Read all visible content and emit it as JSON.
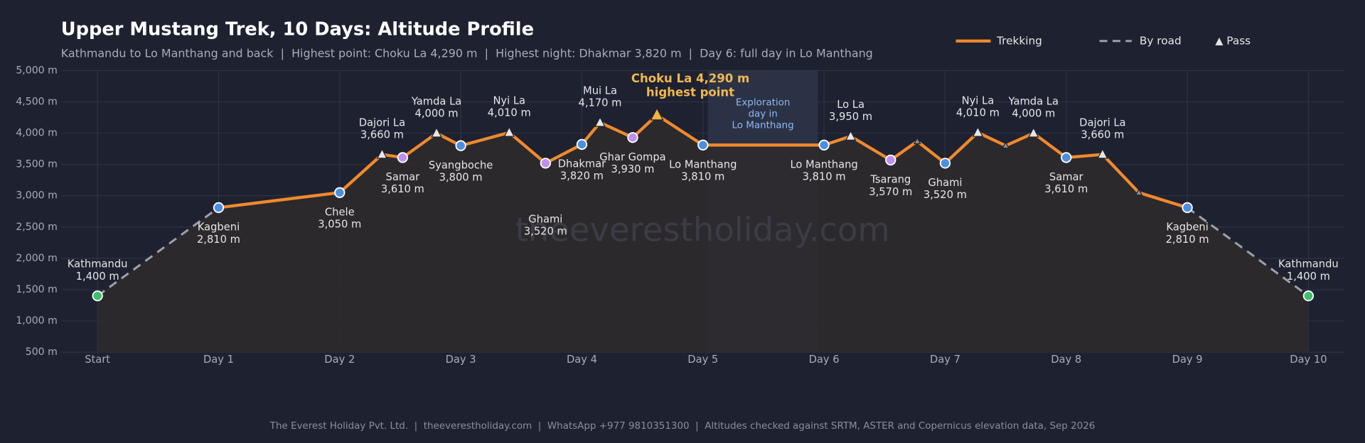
{
  "chart_data": {
    "type": "line",
    "title": "Upper Mustang Trek, 10 Days: Altitude Profile",
    "subtitle": "Kathmandu to Lo Manthang and back  |  Highest point: Choku La 4,290 m  |  Highest night: Dhakmar 3,820 m  |  Day 6: full day in Lo Manthang",
    "x": [
      0,
      1,
      2,
      2.35,
      2.52,
      2.8,
      3,
      3.4,
      3.7,
      4,
      4.15,
      4.42,
      4.62,
      5,
      6,
      6.22,
      6.55,
      6.77,
      7,
      7.27,
      7.5,
      7.73,
      8,
      8.3,
      8.6,
      9,
      10
    ],
    "series": [
      {
        "name": "Trekking",
        "color": "#f08a2c",
        "values": [
          null,
          2810,
          3050,
          3660,
          3610,
          4000,
          3800,
          4010,
          3520,
          3820,
          4170,
          3930,
          4290,
          3810,
          3810,
          3950,
          3570,
          3870,
          3520,
          4010,
          3800,
          4000,
          3610,
          3660,
          3050,
          2810,
          null
        ]
      },
      {
        "name": "By road",
        "color": "#9aa0ab",
        "dashed": true,
        "values": [
          1400,
          2810,
          null,
          null,
          null,
          null,
          null,
          null,
          null,
          null,
          null,
          null,
          null,
          null,
          null,
          null,
          null,
          null,
          null,
          null,
          null,
          null,
          null,
          null,
          null,
          2810,
          1400
        ]
      }
    ],
    "point_names": [
      "Kathmandu",
      "Kagbeni",
      "Chele",
      "Dajori La",
      "Samar",
      "Yamda La",
      "Syangboche",
      "Nyi La",
      "Ghami",
      "Dhakmar",
      "Mui La",
      "Ghar Gompa",
      null,
      "Lo Manthang",
      "Lo Manthang",
      "Lo La",
      "Tsarang",
      null,
      "Ghami",
      "Nyi La",
      null,
      "Yamda La",
      "Samar",
      "Dajori La",
      null,
      "Kagbeni",
      "Kathmandu"
    ],
    "value_labels": [
      "1,400 m",
      "2,810 m",
      "3,050 m",
      "3,660 m",
      "3,610 m",
      "4,000 m",
      "3,800 m",
      "4,010 m",
      "3,520 m",
      "3,820 m",
      "4,170 m",
      "3,930 m",
      null,
      "3,810 m",
      "3,810 m",
      "3,950 m",
      "3,570 m",
      null,
      "3,520 m",
      "4,010 m",
      null,
      "4,000 m",
      "3,610 m",
      "3,660 m",
      null,
      "2,810 m",
      "1,400 m"
    ],
    "markers": [
      "start",
      "stop",
      "stop",
      "pass",
      "rest",
      "pass",
      "stop",
      "pass",
      "rest",
      "stop",
      "pass",
      "rest",
      "summit",
      "stop",
      "stop",
      "pass",
      "rest",
      "minor",
      "stop",
      "pass",
      "minor",
      "pass",
      "stop",
      "pass",
      "minor",
      "stop",
      "start"
    ],
    "marker_colors": {
      "start": "#3fbf6a",
      "stop": "#4a90e2",
      "rest": "#c08ff0",
      "pass": "#e6e6e6",
      "summit": "#f0b440",
      "minor": "#8a8f99"
    },
    "legend_pass": "Pass",
    "xlim": [
      -0.3,
      10.3
    ],
    "xticks": [
      {
        "value": 0,
        "label": "Start"
      },
      {
        "value": 1,
        "label": "Day 1"
      },
      {
        "value": 2,
        "label": "Day 2"
      },
      {
        "value": 3,
        "label": "Day 3"
      },
      {
        "value": 4,
        "label": "Day 4"
      },
      {
        "value": 5,
        "label": "Day 5"
      },
      {
        "value": 6,
        "label": "Day 6"
      },
      {
        "value": 7,
        "label": "Day 7"
      },
      {
        "value": 8,
        "label": "Day 8"
      },
      {
        "value": 9,
        "label": "Day 9"
      },
      {
        "value": 10,
        "label": "Day 10"
      }
    ],
    "ylim": [
      500,
      5000
    ],
    "yticks": [
      {
        "value": 500,
        "label": "500 m"
      },
      {
        "value": 1000,
        "label": "1,000 m"
      },
      {
        "value": 1500,
        "label": "1,500 m"
      },
      {
        "value": 2000,
        "label": "2,000 m"
      },
      {
        "value": 2500,
        "label": "2,500 m"
      },
      {
        "value": 3000,
        "label": "3,000 m"
      },
      {
        "value": 3500,
        "label": "3,500 m"
      },
      {
        "value": 4000,
        "label": "4,000 m"
      },
      {
        "value": 4500,
        "label": "4,500 m"
      },
      {
        "value": 5000,
        "label": "5,000 m"
      }
    ],
    "grid": true,
    "highlight": {
      "xlim": [
        5.04,
        5.95
      ],
      "lines": [
        "Exploration",
        "day in",
        "Lo Manthang"
      ]
    },
    "summit_annotation": [
      "Choku La 4,290 m",
      "highest point"
    ],
    "watermark": "theeverestholiday.com",
    "footer": "The Everest Holiday Pvt. Ltd.  |  theeverestholiday.com  |  WhatsApp +977 9810351300  |  Altitudes checked against SRTM, ASTER and Copernicus elevation data, Sep 2026"
  }
}
